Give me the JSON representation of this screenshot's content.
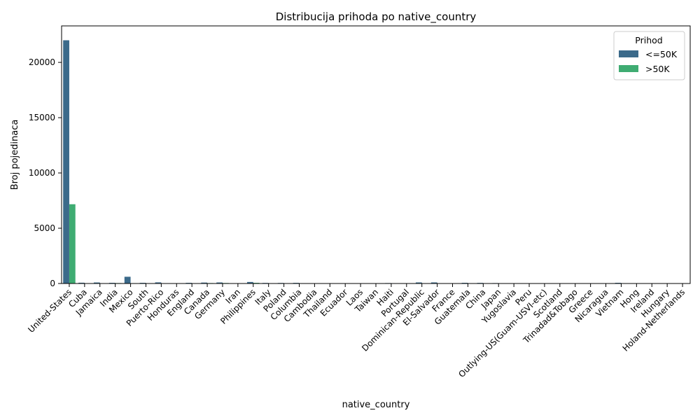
{
  "chart_data": {
    "type": "bar",
    "title": "Distribucija prihoda po native_country",
    "xlabel": "native_country",
    "ylabel": "Broj pojedinaca",
    "ylim": [
      0,
      23300
    ],
    "yticks": [
      0,
      5000,
      10000,
      15000,
      20000
    ],
    "grid": false,
    "legend": {
      "title": "Prihod",
      "position": "top-right"
    },
    "categories": [
      "United-States",
      "Cuba",
      "Jamaica",
      "India",
      "Mexico",
      "South",
      "Puerto-Rico",
      "Honduras",
      "England",
      "Canada",
      "Germany",
      "Iran",
      "Philippines",
      "Italy",
      "Poland",
      "Columbia",
      "Cambodia",
      "Thailand",
      "Ecuador",
      "Laos",
      "Taiwan",
      "Haiti",
      "Portugal",
      "Dominican-Republic",
      "El-Salvador",
      "France",
      "Guatemala",
      "China",
      "Japan",
      "Yugoslavia",
      "Peru",
      "Outlying-US(Guam-USVI-etc)",
      "Scotland",
      "Trinadad&Tobago",
      "Greece",
      "Nicaragua",
      "Vietnam",
      "Hong",
      "Ireland",
      "Hungary",
      "Holand-Netherlands"
    ],
    "series": [
      {
        "name": "<=50K",
        "color": "#3b6a8a",
        "values": [
          22000,
          70,
          91,
          60,
          610,
          60,
          102,
          12,
          60,
          82,
          94,
          25,
          137,
          50,
          48,
          57,
          12,
          15,
          24,
          16,
          20,
          40,
          33,
          97,
          97,
          17,
          61,
          55,
          38,
          10,
          28,
          14,
          9,
          17,
          21,
          31,
          62,
          14,
          19,
          10,
          1
        ]
      },
      {
        "name": ">50K",
        "color": "#3fac72",
        "values": [
          7170,
          25,
          10,
          40,
          33,
          16,
          12,
          1,
          30,
          39,
          44,
          18,
          61,
          25,
          12,
          2,
          7,
          3,
          4,
          2,
          20,
          4,
          4,
          2,
          9,
          12,
          3,
          20,
          24,
          6,
          2,
          0,
          3,
          2,
          8,
          2,
          5,
          6,
          5,
          3,
          0
        ]
      }
    ]
  }
}
